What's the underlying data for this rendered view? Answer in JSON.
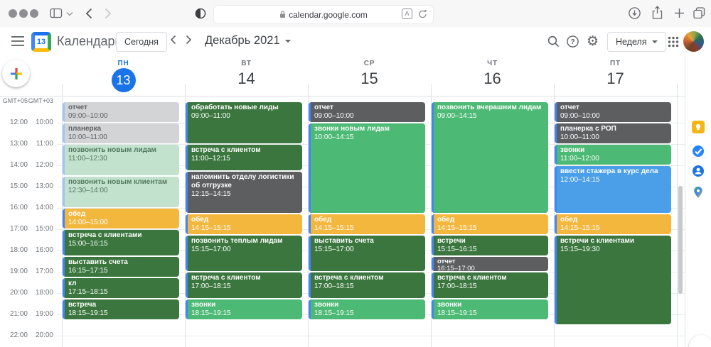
{
  "colors": {
    "accent": "#1a73e8",
    "ev_darkgreen": "#3a763e",
    "ev_medgreen": "#4cb974",
    "ev_darkgray": "#5c5e60",
    "ev_orange": "#f4b73e",
    "ev_blue": "#4a9fe8",
    "ev_gray_past": "#d2d4d5",
    "ev_green_past": "#c3e2cd",
    "txt_gray_past": "#5d6164",
    "txt_green_past": "#53785f",
    "stripe": "#4285f4",
    "stripe_past": "#a3c3f2"
  },
  "browser": {
    "url": "calendar.google.com",
    "traffic_lights": [
      "close",
      "minimize",
      "zoom"
    ]
  },
  "header": {
    "app_name": "Календарь",
    "logo_day": "13",
    "today_button": "Сегодня",
    "month_title": "Декабрь 2021",
    "view_button": "Неделя"
  },
  "grid": {
    "timezone_left": "GMT+05",
    "timezone_right": "GMT+03",
    "hour_labels": [
      {
        "left": "12:00",
        "right": "10:00"
      },
      {
        "left": "13:00",
        "right": "11:00"
      },
      {
        "left": "14:00",
        "right": "12:00"
      },
      {
        "left": "15:00",
        "right": "13:00"
      },
      {
        "left": "16:00",
        "right": "14:00"
      },
      {
        "left": "17:00",
        "right": "15:00"
      },
      {
        "left": "18:00",
        "right": "16:00"
      },
      {
        "left": "19:00",
        "right": "17:00"
      },
      {
        "left": "20:00",
        "right": "18:00"
      },
      {
        "left": "21:00",
        "right": "19:00"
      },
      {
        "left": "22:00",
        "right": "20:00"
      }
    ],
    "days": [
      {
        "weekday": "ПН",
        "date": "13",
        "today": true,
        "events": [
          {
            "title": "отчет",
            "start": "09:00",
            "end": "10:00",
            "color": "gray_past"
          },
          {
            "title": "планерка",
            "start": "10:00",
            "end": "11:00",
            "color": "gray_past"
          },
          {
            "title": "позвонить новым лидам",
            "start": "11:00",
            "end": "12:30",
            "color": "green_past"
          },
          {
            "title": "позвонить новым клиентам",
            "start": "12:30",
            "end": "14:00",
            "color": "green_past"
          },
          {
            "title": "обед",
            "start": "14:00",
            "end": "15:00",
            "color": "orange"
          },
          {
            "title": "встреча с клиентами",
            "start": "15:00",
            "end": "16:15",
            "color": "darkgreen"
          },
          {
            "title": "выставить счета",
            "start": "16:15",
            "end": "17:15",
            "color": "darkgreen"
          },
          {
            "title": "кл",
            "start": "17:15",
            "end": "18:15",
            "color": "darkgreen"
          },
          {
            "title": "встреча",
            "start": "18:15",
            "end": "19:15",
            "color": "darkgreen"
          }
        ]
      },
      {
        "weekday": "ВТ",
        "date": "14",
        "today": false,
        "events": [
          {
            "title": "обработать новые лиды",
            "start": "09:00",
            "end": "11:00",
            "color": "darkgreen"
          },
          {
            "title": "встреча с клиентом",
            "start": "11:00",
            "end": "12:15",
            "color": "darkgreen"
          },
          {
            "title": "напомнить отделу логистики об отгрузке",
            "start": "12:15",
            "end": "14:15",
            "color": "darkgray"
          },
          {
            "title": "обед",
            "start": "14:15",
            "end": "15:15",
            "color": "orange"
          },
          {
            "title": "позвонить теплым лидам",
            "start": "15:15",
            "end": "17:00",
            "color": "darkgreen"
          },
          {
            "title": "встреча с клиентом",
            "start": "17:00",
            "end": "18:15",
            "color": "darkgreen"
          },
          {
            "title": "звонки",
            "start": "18:15",
            "end": "19:15",
            "color": "medgreen"
          }
        ]
      },
      {
        "weekday": "СР",
        "date": "15",
        "today": false,
        "events": [
          {
            "title": "отчет",
            "start": "09:00",
            "end": "10:00",
            "color": "darkgray"
          },
          {
            "title": "звонки новым лидам",
            "start": "10:00",
            "end": "14:15",
            "color": "medgreen"
          },
          {
            "title": "обед",
            "start": "14:15",
            "end": "15:15",
            "color": "orange"
          },
          {
            "title": "выставить счета",
            "start": "15:15",
            "end": "17:00",
            "color": "darkgreen"
          },
          {
            "title": "встреча с клиентом",
            "start": "17:00",
            "end": "18:15",
            "color": "darkgreen"
          },
          {
            "title": "звонки",
            "start": "18:15",
            "end": "19:15",
            "color": "medgreen"
          }
        ]
      },
      {
        "weekday": "ЧТ",
        "date": "16",
        "today": false,
        "events": [
          {
            "title": "позвонить вчерашним лидам",
            "start": "09:00",
            "end": "14:15",
            "color": "medgreen"
          },
          {
            "title": "обед",
            "start": "14:15",
            "end": "15:15",
            "color": "orange"
          },
          {
            "title": "встречи",
            "start": "15:15",
            "end": "16:15",
            "color": "darkgreen"
          },
          {
            "title": "отчет",
            "start": "16:15",
            "end": "17:00",
            "color": "darkgray"
          },
          {
            "title": "встреча с клиентом",
            "start": "17:00",
            "end": "18:15",
            "color": "darkgreen"
          },
          {
            "title": "звонки",
            "start": "18:15",
            "end": "19:15",
            "color": "medgreen"
          }
        ]
      },
      {
        "weekday": "ПТ",
        "date": "17",
        "today": false,
        "events": [
          {
            "title": "отчет",
            "start": "09:00",
            "end": "10:00",
            "color": "darkgray"
          },
          {
            "title": "планерка с РОП",
            "start": "10:00",
            "end": "11:00",
            "color": "darkgray"
          },
          {
            "title": "звонки",
            "start": "11:00",
            "end": "12:00",
            "color": "medgreen"
          },
          {
            "title": "ввести стажера в курс дела",
            "start": "12:00",
            "end": "14:15",
            "color": "blue"
          },
          {
            "title": "обед",
            "start": "14:15",
            "end": "15:15",
            "color": "orange"
          },
          {
            "title": "встречи с клиентами",
            "start": "15:15",
            "end": "19:30",
            "color": "darkgreen"
          }
        ]
      }
    ]
  }
}
